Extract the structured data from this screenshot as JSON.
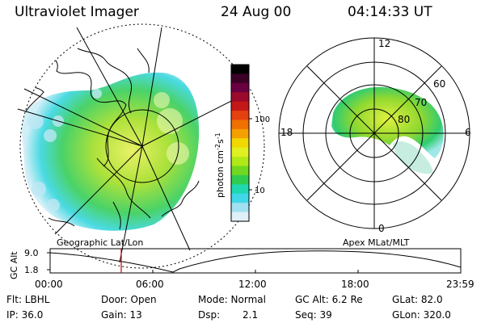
{
  "header": {
    "instrument": "Ultraviolet Imager",
    "date": "24 Aug 00",
    "time": "04:14:33 UT"
  },
  "colorbar": {
    "unit": "photon cm",
    "unit_exp1": "-2",
    "unit_s": "s",
    "unit_exp2": "-1",
    "ticks": [
      "100",
      "10"
    ],
    "colors": [
      "#000000",
      "#3a0026",
      "#6a0040",
      "#9b0a2a",
      "#c41818",
      "#e44010",
      "#f07000",
      "#f4a000",
      "#f0d800",
      "#e0f020",
      "#b0e818",
      "#70d820",
      "#30cc50",
      "#20d8b0",
      "#40d8e8",
      "#a0e0f0",
      "#e0f0f8"
    ]
  },
  "left_panel": {
    "caption": "Geographic Lat/Lon"
  },
  "right_panel": {
    "caption": "Apex MLat/MLT",
    "mlt_labels": [
      "12",
      "18",
      "6",
      "0"
    ],
    "lat_labels": [
      "60",
      "70",
      "80"
    ]
  },
  "altitude_plot": {
    "axis_label": "GC Alt",
    "y_ticks": [
      "9.0",
      "1.8"
    ],
    "x_ticks": [
      "00:00",
      "06:00",
      "12:00",
      "18:00",
      "23:59"
    ],
    "marker_color": "#cc0000"
  },
  "info": {
    "flt": "Flt: LBHL",
    "ip": "IP: 36.0",
    "door": "Door: Open",
    "gain": "Gain: 13",
    "mode": "Mode: Normal",
    "dsp_label": "Dsp:",
    "dsp_value": "2.1",
    "gc_alt": "GC Alt: 6.2 Re",
    "seq": "Seq: 39",
    "glat": "GLat:  82.0",
    "glon": "GLon: 320.0"
  }
}
